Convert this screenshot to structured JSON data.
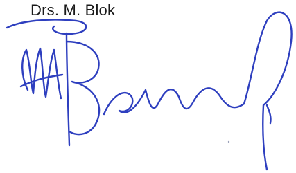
{
  "name": "Drs. M. Blok"
}
